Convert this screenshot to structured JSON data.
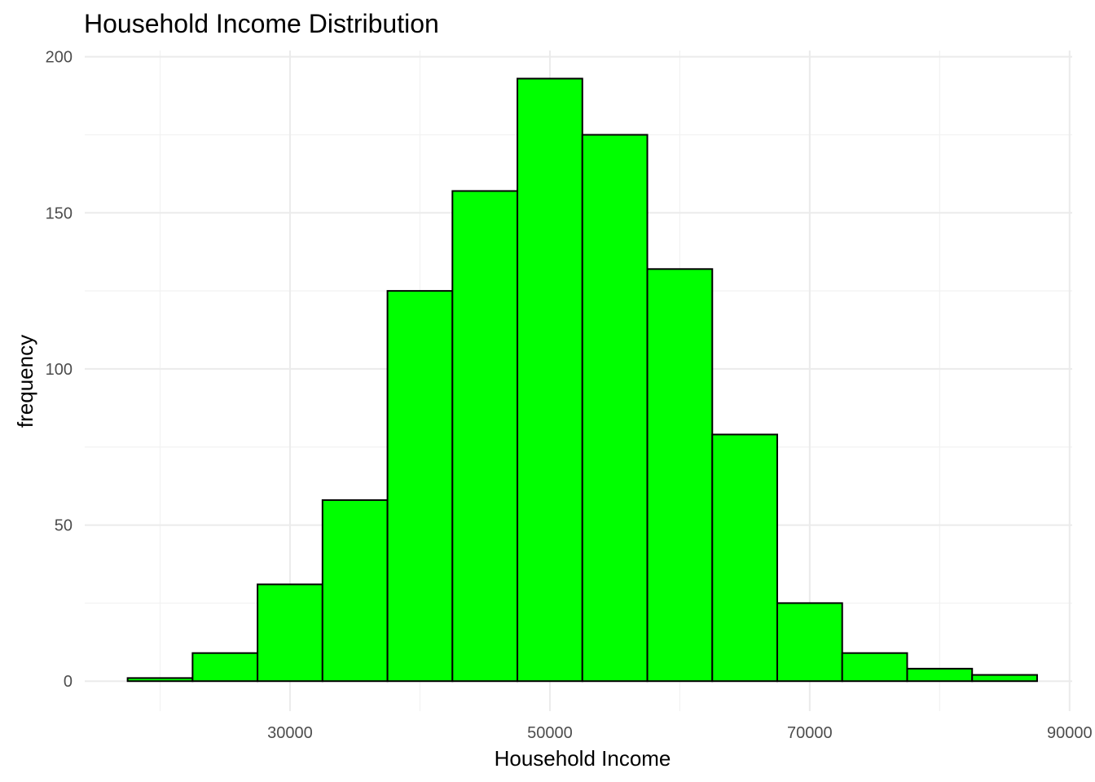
{
  "chart_data": {
    "type": "bar",
    "title": "Household Income Distribution",
    "xlabel": "Household Income",
    "ylabel": "frequency",
    "bin_width": 5000,
    "bins": [
      {
        "x0": 17500,
        "x1": 22500,
        "count": 1
      },
      {
        "x0": 22500,
        "x1": 27500,
        "count": 9
      },
      {
        "x0": 27500,
        "x1": 32500,
        "count": 31
      },
      {
        "x0": 32500,
        "x1": 37500,
        "count": 58
      },
      {
        "x0": 37500,
        "x1": 42500,
        "count": 125
      },
      {
        "x0": 42500,
        "x1": 47500,
        "count": 157
      },
      {
        "x0": 47500,
        "x1": 52500,
        "count": 193
      },
      {
        "x0": 52500,
        "x1": 57500,
        "count": 175
      },
      {
        "x0": 57500,
        "x1": 62500,
        "count": 132
      },
      {
        "x0": 62500,
        "x1": 67500,
        "count": 79
      },
      {
        "x0": 67500,
        "x1": 72500,
        "count": 25
      },
      {
        "x0": 72500,
        "x1": 77500,
        "count": 9
      },
      {
        "x0": 77500,
        "x1": 82500,
        "count": 4
      },
      {
        "x0": 82500,
        "x1": 87500,
        "count": 2
      }
    ],
    "xlim": [
      14200,
      90200
    ],
    "ylim": [
      -9.6,
      202
    ],
    "x_ticks": [
      30000,
      50000,
      70000,
      90000
    ],
    "x_tick_labels": [
      "30000",
      "50000",
      "70000",
      "90000"
    ],
    "x_minor_ticks": [
      20000,
      40000,
      60000,
      80000
    ],
    "y_ticks": [
      0,
      50,
      100,
      150,
      200
    ],
    "y_tick_labels": [
      "0",
      "50",
      "100",
      "150",
      "200"
    ],
    "y_minor_ticks": [
      25,
      75,
      125,
      175
    ],
    "grid": true,
    "legend": "none",
    "colors": {
      "fill": "#00ff00",
      "outline": "#000000",
      "grid": "#ebebeb"
    }
  }
}
